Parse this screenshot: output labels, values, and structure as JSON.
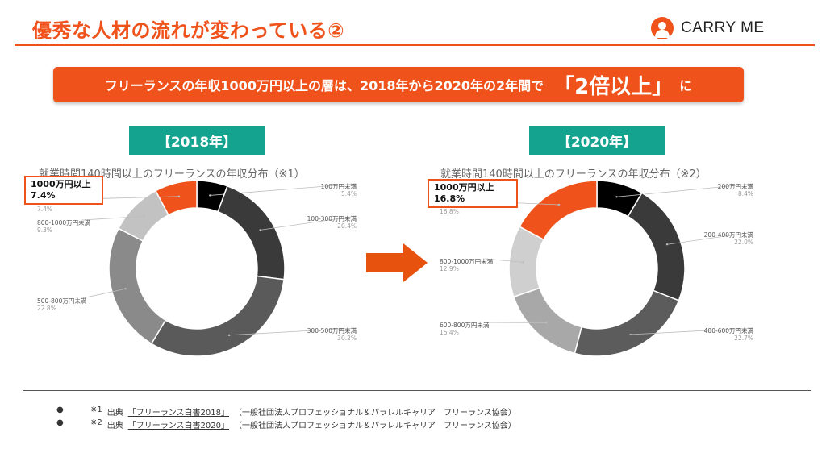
{
  "header": {
    "title": "優秀な人材の流れが変わっている②",
    "logo_text": "CARRY ME"
  },
  "banner": {
    "main": "フリーランスの年収1000万円以上の層は、2018年から2020年の2年間で",
    "emphasis": "「2倍以上」",
    "tail": "に"
  },
  "colors": {
    "accent": "#f0521b",
    "teal": "#13a38f"
  },
  "chart_data": [
    {
      "type": "pie",
      "year_label": "【2018年】",
      "title": "就業時間140時間以上のフリーランスの年収分布（※1）",
      "categories": [
        "100万円未満",
        "100-300万円未満",
        "300-500万円未満",
        "500-800万円未満",
        "800-1000万円未満",
        "1000万円以上"
      ],
      "values": [
        5.4,
        20.4,
        30.2,
        22.8,
        9.3,
        7.4
      ],
      "value_labels": [
        "5.4%",
        "20.4%",
        "30.2%",
        "22.8%",
        "9.3%",
        "7.4%"
      ],
      "slice_colors": [
        "#000000",
        "#3a3a3a",
        "#5a5a5a",
        "#8a8a8a",
        "#c2c2c2",
        "#f0521b"
      ],
      "callout": {
        "name": "1000万円以上",
        "value": "7.4%"
      }
    },
    {
      "type": "pie",
      "year_label": "【2020年】",
      "title": "就業時間140時間以上のフリーランスの年収分布（※2）",
      "categories": [
        "200万円未満",
        "200-400万円未満",
        "400-600万円未満",
        "600-800万円未満",
        "800-1000万円未満",
        "1000万円以上"
      ],
      "values": [
        8.4,
        22.0,
        22.7,
        15.4,
        12.9,
        16.8
      ],
      "value_labels": [
        "8.4%",
        "22.0%",
        "22.7%",
        "15.4%",
        "12.9%",
        "16.8%"
      ],
      "slice_colors": [
        "#000000",
        "#3a3a3a",
        "#5c5c5c",
        "#a8a8a8",
        "#cfcfcf",
        "#f0521b"
      ],
      "callout": {
        "name": "1000万円以上",
        "value": "16.8%"
      }
    }
  ],
  "footnotes": [
    {
      "bullet": "●",
      "num": "※1",
      "prefix": "出典",
      "source": "「フリーランス白書2018」",
      "org": "（一般社団法人プロフェッショナル＆パラレルキャリア　フリーランス協会）"
    },
    {
      "bullet": "●",
      "num": "※2",
      "prefix": "出典",
      "source": "「フリーランス白書2020」",
      "org": "（一般社団法人プロフェッショナル＆パラレルキャリア　フリーランス協会）"
    }
  ]
}
